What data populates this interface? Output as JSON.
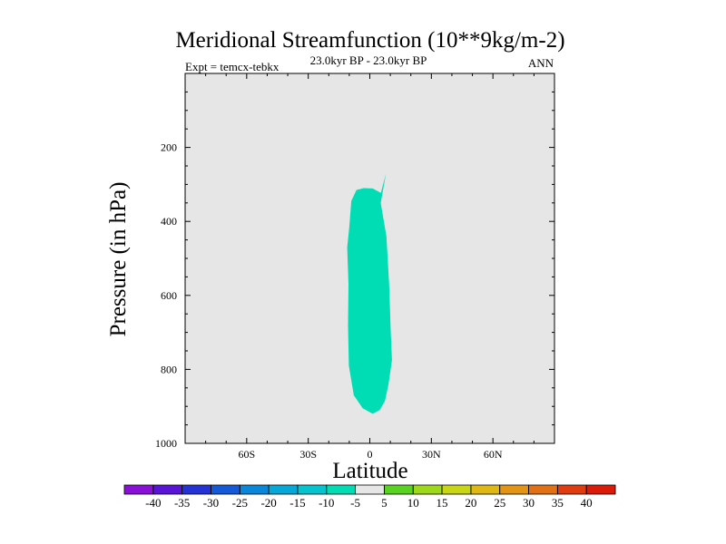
{
  "chart_data": {
    "type": "contour",
    "title": "Meridional Streamfunction (10**9kg/m-2)",
    "subtitle_left": "Expt = temcx-tebkx",
    "subtitle_center": "23.0kyr BP - 23.0kyr BP",
    "subtitle_right": "ANN",
    "xlabel": "Latitude",
    "ylabel": "Pressure (in hPa)",
    "xlim": [
      -90,
      90
    ],
    "ylim": [
      0,
      1000
    ],
    "y_inverted": true,
    "x_ticks": [
      {
        "value": -60,
        "label": "60S"
      },
      {
        "value": -30,
        "label": "30S"
      },
      {
        "value": 0,
        "label": "0"
      },
      {
        "value": 30,
        "label": "30N"
      },
      {
        "value": 60,
        "label": "60N"
      }
    ],
    "y_ticks": [
      {
        "value": 200,
        "label": "200"
      },
      {
        "value": 400,
        "label": "400"
      },
      {
        "value": 600,
        "label": "600"
      },
      {
        "value": 800,
        "label": "800"
      },
      {
        "value": 1000,
        "label": "1000"
      }
    ],
    "background_fill": "#e6e6e6",
    "regions": [
      {
        "name": "negative-cell",
        "range": "-10 to -5",
        "color": "#00dcb4",
        "outline": [
          [
            7.9,
            270
          ],
          [
            5.3,
            350
          ],
          [
            8.1,
            440
          ],
          [
            9.4,
            570
          ],
          [
            10.2,
            700
          ],
          [
            10.8,
            775
          ],
          [
            9.1,
            840
          ],
          [
            7.4,
            885
          ],
          [
            4.8,
            910
          ],
          [
            1.4,
            920
          ],
          [
            -3.5,
            905
          ],
          [
            -7.8,
            870
          ],
          [
            -10.2,
            790
          ],
          [
            -10.6,
            680
          ],
          [
            -10.4,
            570
          ],
          [
            -11.0,
            470
          ],
          [
            -10.0,
            415
          ],
          [
            -9.0,
            345
          ],
          [
            -6.5,
            315
          ],
          [
            -2.9,
            310
          ],
          [
            1.4,
            311
          ],
          [
            5.4,
            323
          ]
        ]
      }
    ],
    "colorbar": {
      "labels": [
        "-40",
        "-35",
        "-30",
        "-25",
        "-20",
        "-15",
        "-10",
        "-5",
        "5",
        "10",
        "15",
        "20",
        "25",
        "30",
        "35",
        "40"
      ],
      "colors": [
        "#8a10d8",
        "#5a14d8",
        "#2432d6",
        "#1459d8",
        "#0a86da",
        "#05a8d8",
        "#04c4d0",
        "#00dcb4",
        "#e6e6e6",
        "#5ad222",
        "#9ed81a",
        "#c8d616",
        "#e0b814",
        "#e39414",
        "#e27014",
        "#e03c10",
        "#dc1a08"
      ]
    }
  }
}
